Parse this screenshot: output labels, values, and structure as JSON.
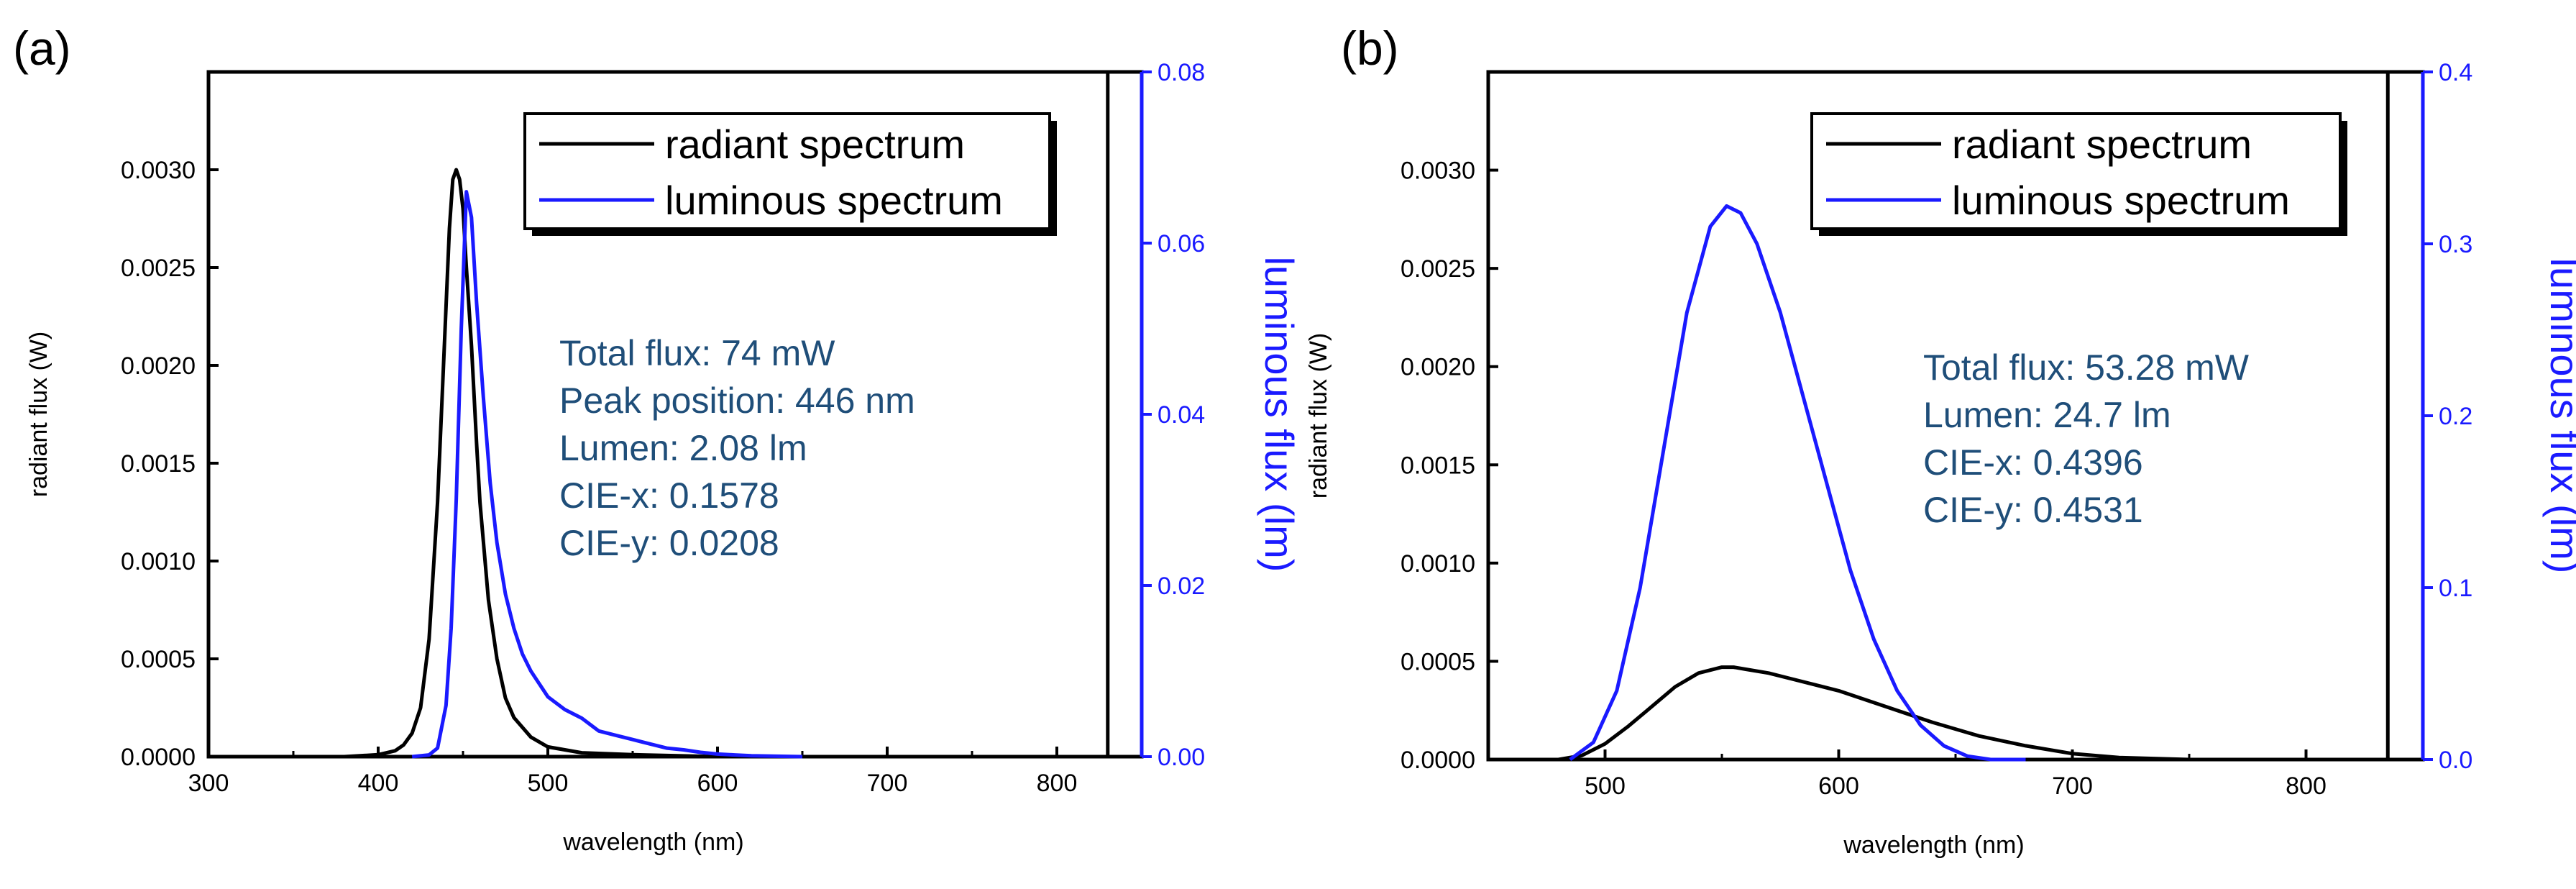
{
  "colors": {
    "radiant": "#000000",
    "luminous": "#1a1aff",
    "annotation": "#1f4e79",
    "right_axis": "#1a1aff"
  },
  "chart_data": [
    {
      "panel_label": "(a)",
      "type": "line",
      "xlabel": "wavelength (nm)",
      "ylabel": "radiant flux (W)",
      "y2label": "luminous flux (lm)",
      "xlim": [
        300,
        850
      ],
      "ylim": [
        0,
        0.0035
      ],
      "y2lim": [
        0,
        0.08
      ],
      "xticks": [
        300,
        400,
        500,
        600,
        700,
        800
      ],
      "xtick_labels": [
        "300",
        "400",
        "500",
        "600",
        "700",
        "800"
      ],
      "yticks": [
        0,
        0.0005,
        0.001,
        0.0015,
        0.002,
        0.0025,
        0.003
      ],
      "ytick_labels": [
        "0.0000",
        "0.0005",
        "0.0010",
        "0.0015",
        "0.0020",
        "0.0025",
        "0.0030"
      ],
      "y2ticks": [
        0,
        0.02,
        0.04,
        0.06,
        0.08
      ],
      "y2tick_labels": [
        "0.00",
        "0.02",
        "0.04",
        "0.06",
        "0.08"
      ],
      "inner_right_x": 830,
      "legend": [
        "radiant spectrum",
        "luminous spectrum"
      ],
      "annotations": [
        "Total flux: 74 mW",
        "Peak position: 446 nm",
        "Lumen: 2.08 lm",
        "CIE-x: 0.1578",
        "CIE-y: 0.0208"
      ],
      "series": [
        {
          "name": "radiant spectrum",
          "axis": "left",
          "x": [
            380,
            400,
            410,
            415,
            420,
            425,
            430,
            435,
            438,
            440,
            442,
            444,
            446,
            448,
            450,
            452,
            455,
            458,
            460,
            465,
            470,
            475,
            480,
            490,
            500,
            520,
            550,
            600,
            650,
            700,
            750,
            800,
            830
          ],
          "y": [
            0,
            1e-05,
            3e-05,
            6e-05,
            0.00012,
            0.00025,
            0.0006,
            0.0013,
            0.0019,
            0.0023,
            0.0027,
            0.00295,
            0.003,
            0.00295,
            0.0028,
            0.0025,
            0.0021,
            0.0016,
            0.0013,
            0.0008,
            0.0005,
            0.0003,
            0.0002,
            0.0001,
            5e-05,
            2e-05,
            1e-05,
            0,
            0,
            0,
            0,
            0,
            0
          ]
        },
        {
          "name": "luminous spectrum",
          "axis": "right",
          "x": [
            420,
            430,
            435,
            440,
            443,
            446,
            449,
            452,
            455,
            458,
            462,
            466,
            470,
            475,
            480,
            485,
            490,
            495,
            500,
            510,
            520,
            530,
            540,
            550,
            560,
            570,
            580,
            590,
            600,
            610,
            620,
            650
          ],
          "y": [
            0,
            0.0002,
            0.001,
            0.006,
            0.015,
            0.03,
            0.05,
            0.066,
            0.063,
            0.053,
            0.042,
            0.032,
            0.025,
            0.019,
            0.015,
            0.012,
            0.01,
            0.0085,
            0.007,
            0.0055,
            0.0045,
            0.003,
            0.0025,
            0.002,
            0.0015,
            0.001,
            0.0008,
            0.0005,
            0.0003,
            0.0002,
            0.0001,
            0
          ]
        }
      ]
    },
    {
      "panel_label": "(b)",
      "type": "line",
      "xlabel": "wavelength (nm)",
      "ylabel": "radiant flux (W)",
      "y2label": "luminous flux (lm)",
      "xlim": [
        450,
        850
      ],
      "ylim": [
        0,
        0.0035
      ],
      "y2lim": [
        0,
        0.4
      ],
      "xticks": [
        500,
        600,
        700,
        800
      ],
      "xtick_labels": [
        "500",
        "600",
        "700",
        "800"
      ],
      "yticks": [
        0,
        0.0005,
        0.001,
        0.0015,
        0.002,
        0.0025,
        0.003
      ],
      "ytick_labels": [
        "0.0000",
        "0.0005",
        "0.0010",
        "0.0015",
        "0.0020",
        "0.0025",
        "0.0030"
      ],
      "y2ticks": [
        0,
        0.1,
        0.2,
        0.3,
        0.4
      ],
      "y2tick_labels": [
        "0.0",
        "0.1",
        "0.2",
        "0.3",
        "0.4"
      ],
      "inner_right_x": 835,
      "legend": [
        "radiant spectrum",
        "luminous spectrum"
      ],
      "annotations": [
        "Total flux: 53.28 mW",
        "Lumen: 24.7 lm",
        "CIE-x: 0.4396",
        "CIE-y: 0.4531"
      ],
      "series": [
        {
          "name": "radiant spectrum",
          "axis": "left",
          "x": [
            480,
            490,
            500,
            510,
            520,
            530,
            540,
            550,
            555,
            560,
            570,
            580,
            590,
            600,
            620,
            640,
            660,
            680,
            700,
            720,
            750,
            800
          ],
          "y": [
            0,
            2e-05,
            8e-05,
            0.00017,
            0.00027,
            0.00037,
            0.00044,
            0.00047,
            0.00047,
            0.00046,
            0.00044,
            0.00041,
            0.00038,
            0.00035,
            0.00027,
            0.00019,
            0.00012,
            7e-05,
            3e-05,
            1e-05,
            0,
            0
          ]
        },
        {
          "name": "luminous spectrum",
          "axis": "right",
          "x": [
            485,
            495,
            505,
            515,
            525,
            535,
            545,
            552,
            558,
            565,
            575,
            585,
            595,
            605,
            615,
            625,
            635,
            645,
            655,
            665,
            680
          ],
          "y": [
            0,
            0.01,
            0.04,
            0.1,
            0.18,
            0.26,
            0.31,
            0.322,
            0.318,
            0.3,
            0.26,
            0.21,
            0.16,
            0.11,
            0.07,
            0.04,
            0.02,
            0.008,
            0.002,
            0,
            0
          ]
        }
      ]
    }
  ]
}
